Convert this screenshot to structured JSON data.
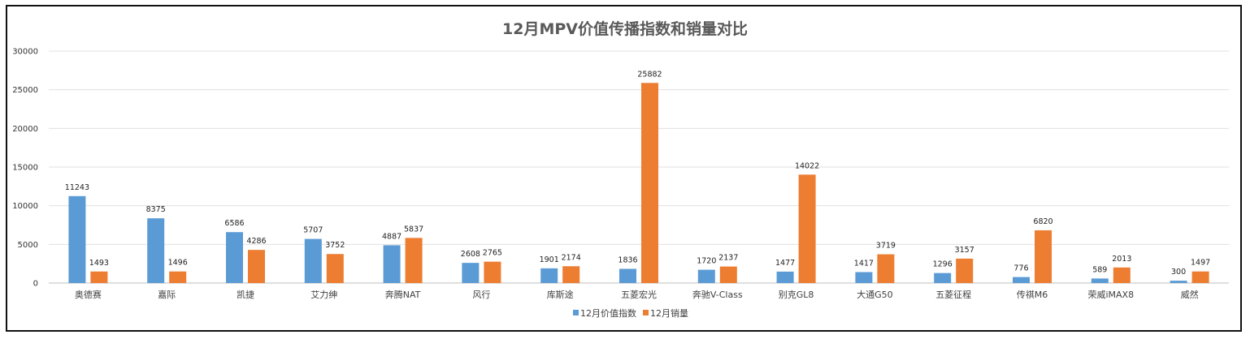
{
  "chart_data": {
    "type": "bar",
    "title": "12月MPV价值传播指数和销量对比",
    "xlabel": "",
    "ylabel": "",
    "ylim": [
      0,
      30000
    ],
    "yticks": [
      0,
      5000,
      10000,
      15000,
      20000,
      25000,
      30000
    ],
    "grid": true,
    "legend_position": "bottom",
    "categories": [
      "奥德赛",
      "嘉际",
      "凯捷",
      "艾力绅",
      "奔腾NAT",
      "风行",
      "库斯途",
      "五菱宏光",
      "奔驰V-Class",
      "别克GL8",
      "大通G50",
      "五菱征程",
      "传祺M6",
      "荣威iMAX8",
      "威然"
    ],
    "series": [
      {
        "name": "12月价值指数",
        "color": "#5B9BD5",
        "values": [
          11243,
          8375,
          6586,
          5707,
          4887,
          2608,
          1901,
          1836,
          1720,
          1477,
          1417,
          1296,
          776,
          589,
          300
        ]
      },
      {
        "name": "12月销量",
        "color": "#ED7D31",
        "values": [
          1493,
          1496,
          4286,
          3752,
          5837,
          2765,
          2174,
          25882,
          2137,
          14022,
          3719,
          3157,
          6820,
          2013,
          1497
        ]
      }
    ]
  }
}
